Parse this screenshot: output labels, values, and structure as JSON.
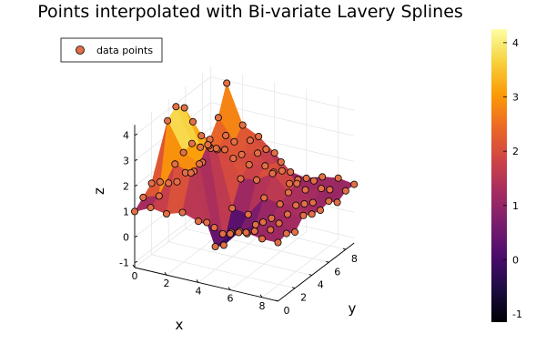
{
  "chart_data": {
    "type": "surface3d",
    "title": "Points interpolated with Bi-variate Lavery Splines",
    "xlabel": "x",
    "ylabel": "y",
    "zlabel": "z",
    "xlim": [
      0,
      9
    ],
    "ylim": [
      0,
      9
    ],
    "zlim": [
      -1.2,
      4.4
    ],
    "x_ticks": [
      "0",
      "2",
      "4",
      "6",
      "8"
    ],
    "y_ticks": [
      "0",
      "2",
      "4",
      "6",
      "8"
    ],
    "z_ticks": [
      "-1",
      "0",
      "1",
      "2",
      "3",
      "4"
    ],
    "colorbar": {
      "min": -1.15,
      "max": 4.25,
      "ticks": [
        "-1",
        "0",
        "1",
        "2",
        "3",
        "4"
      ],
      "colormap": "inferno",
      "colors": [
        "#000004",
        "#1b0c41",
        "#4a0c6b",
        "#781c6d",
        "#a52c60",
        "#cf4446",
        "#ed6925",
        "#fb9b06",
        "#f7d13d",
        "#fcffa4"
      ]
    },
    "legend": {
      "position": "top-left",
      "entries": [
        "data points"
      ]
    },
    "series": [
      {
        "name": "data points",
        "marker_color": "#e26f46",
        "points": [
          [
            0,
            0,
            1.0
          ],
          [
            1,
            0,
            1.3
          ],
          [
            2,
            0,
            1.2
          ],
          [
            3,
            0,
            1.4
          ],
          [
            4,
            0,
            1.2
          ],
          [
            5,
            0,
            1.1
          ],
          [
            6,
            0,
            1.0
          ],
          [
            7,
            0,
            1.2
          ],
          [
            8,
            0,
            1.1
          ],
          [
            9,
            0,
            1.1
          ],
          [
            0,
            1,
            1.3
          ],
          [
            1,
            1,
            1.5
          ],
          [
            2,
            1,
            2.9
          ],
          [
            3,
            1,
            2.7
          ],
          [
            4,
            1,
            0.9
          ],
          [
            5,
            1,
            0.6
          ],
          [
            6,
            1,
            0.8
          ],
          [
            7,
            1,
            1.0
          ],
          [
            8,
            1,
            1.2
          ],
          [
            9,
            1,
            1.2
          ],
          [
            0,
            2,
            1.6
          ],
          [
            1,
            2,
            4.2
          ],
          [
            2,
            2,
            3.1
          ],
          [
            3,
            2,
            2.8
          ],
          [
            4,
            2,
            -0.3
          ],
          [
            5,
            2,
            0.4
          ],
          [
            6,
            2,
            0.5
          ],
          [
            7,
            2,
            1.1
          ],
          [
            8,
            2,
            1.2
          ],
          [
            9,
            2,
            1.0
          ],
          [
            0,
            3,
            1.4
          ],
          [
            1,
            3,
            4.5
          ],
          [
            2,
            3,
            3.2
          ],
          [
            3,
            3,
            3.3
          ],
          [
            4,
            3,
            -0.5
          ],
          [
            5,
            3,
            0.2
          ],
          [
            6,
            3,
            0.6
          ],
          [
            7,
            3,
            1.0
          ],
          [
            8,
            3,
            1.3
          ],
          [
            9,
            3,
            1.4
          ],
          [
            0,
            4,
            1.1
          ],
          [
            1,
            4,
            4.2
          ],
          [
            2,
            4,
            2.8
          ],
          [
            3,
            4,
            2.9
          ],
          [
            4,
            4,
            0.7
          ],
          [
            5,
            4,
            0.6
          ],
          [
            6,
            4,
            1.4
          ],
          [
            7,
            4,
            1.3
          ],
          [
            8,
            4,
            1.4
          ],
          [
            9,
            4,
            1.2
          ],
          [
            0,
            5,
            0.9
          ],
          [
            1,
            5,
            3.4
          ],
          [
            2,
            5,
            2.6
          ],
          [
            3,
            5,
            2.6
          ],
          [
            4,
            5,
            1.6
          ],
          [
            5,
            5,
            1.7
          ],
          [
            6,
            5,
            2.1
          ],
          [
            7,
            5,
            1.5
          ],
          [
            8,
            5,
            1.2
          ],
          [
            9,
            5,
            1.1
          ],
          [
            0,
            6,
            1.0
          ],
          [
            1,
            6,
            2.6
          ],
          [
            2,
            6,
            2.2
          ],
          [
            3,
            6,
            2.0
          ],
          [
            4,
            6,
            1.9
          ],
          [
            5,
            6,
            2.0
          ],
          [
            6,
            6,
            2.3
          ],
          [
            7,
            6,
            1.6
          ],
          [
            8,
            6,
            1.0
          ],
          [
            9,
            6,
            1.2
          ],
          [
            0,
            7,
            0.8
          ],
          [
            1,
            7,
            2.2
          ],
          [
            2,
            7,
            2.5
          ],
          [
            3,
            7,
            1.9
          ],
          [
            4,
            7,
            2.1
          ],
          [
            5,
            7,
            1.5
          ],
          [
            6,
            7,
            1.2
          ],
          [
            7,
            7,
            1.1
          ],
          [
            8,
            7,
            1.3
          ],
          [
            9,
            7,
            0.9
          ],
          [
            0,
            8,
            0.9
          ],
          [
            1,
            8,
            2.8
          ],
          [
            2,
            8,
            2.0
          ],
          [
            3,
            8,
            2.2
          ],
          [
            4,
            8,
            2.0
          ],
          [
            5,
            8,
            1.3
          ],
          [
            6,
            8,
            1.1
          ],
          [
            7,
            8,
            1.2
          ],
          [
            8,
            8,
            1.0
          ],
          [
            9,
            8,
            1.1
          ],
          [
            0,
            9,
            1.2
          ],
          [
            1,
            9,
            3.9
          ],
          [
            2,
            9,
            2.4
          ],
          [
            3,
            9,
            2.1
          ],
          [
            4,
            9,
            1.6
          ],
          [
            5,
            9,
            1.0
          ],
          [
            6,
            9,
            0.9
          ],
          [
            7,
            9,
            1.1
          ],
          [
            8,
            9,
            1.2
          ],
          [
            9,
            9,
            1.1
          ]
        ]
      }
    ]
  }
}
